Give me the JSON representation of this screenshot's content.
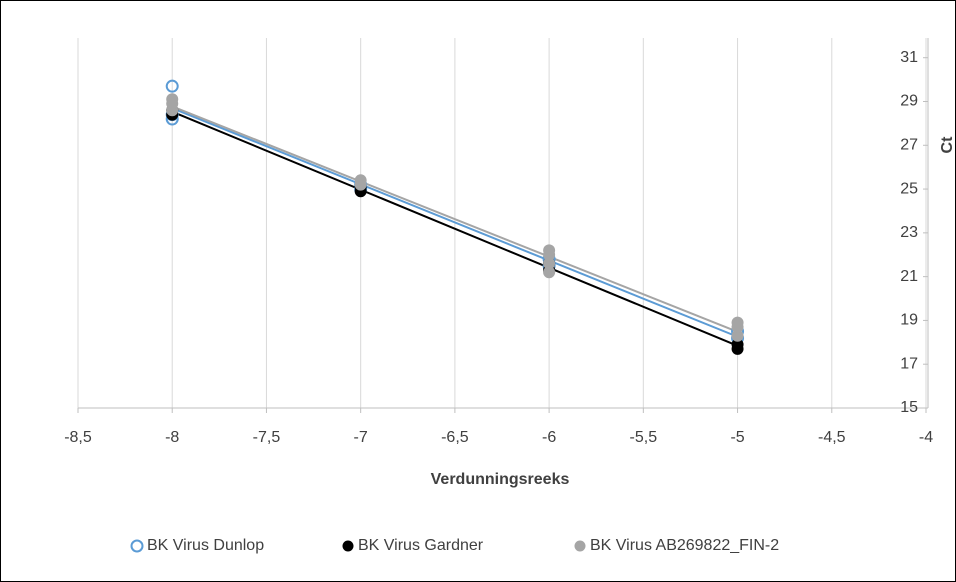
{
  "chart_data": {
    "type": "scatter",
    "x_label": "Verdunningsreeks",
    "y_label": "Ct",
    "xlim": [
      -8.5,
      -4
    ],
    "xticks": [
      {
        "value": -8.5,
        "label": "-8,5"
      },
      -8,
      {
        "value": -7.5,
        "label": "-7,5"
      },
      -7,
      {
        "value": -6.5,
        "label": "-6,5"
      },
      -6,
      {
        "value": -5.5,
        "label": "-5,5"
      },
      -5,
      {
        "value": -4.5,
        "label": "-4,5"
      },
      -4
    ],
    "ylim": [
      15,
      31.9
    ],
    "yticks": [
      15,
      17,
      19,
      21,
      23,
      25,
      27,
      29,
      31
    ],
    "grid": true,
    "trendline": true,
    "legend": "bottom",
    "series": [
      {
        "name": "BK Virus Dunlop",
        "color": "#5b9bd5",
        "marker": "open",
        "x": [
          -8,
          -8,
          -8,
          -7,
          -7,
          -6,
          -6,
          -5,
          -5
        ],
        "values": [
          29.7,
          28.2,
          28.4,
          25.0,
          25.2,
          21.5,
          21.8,
          18.2,
          18.5
        ]
      },
      {
        "name": "BK Virus Gardner",
        "color": "#000000",
        "marker": "filled",
        "x": [
          -8,
          -8,
          -7,
          -7,
          -6,
          -6,
          -5,
          -5
        ],
        "values": [
          28.4,
          28.6,
          24.9,
          25.1,
          21.3,
          21.6,
          17.7,
          17.9
        ]
      },
      {
        "name": "BK Virus AB269822_FIN-2",
        "color": "#a5a5a5",
        "marker": "filled",
        "x": [
          -8,
          -8,
          -8,
          -7,
          -7,
          -6,
          -6,
          -6,
          -6,
          -5,
          -5,
          -5
        ],
        "values": [
          28.6,
          28.9,
          29.1,
          25.2,
          25.4,
          21.2,
          21.6,
          22.0,
          22.2,
          18.3,
          18.7,
          18.9
        ]
      }
    ]
  }
}
